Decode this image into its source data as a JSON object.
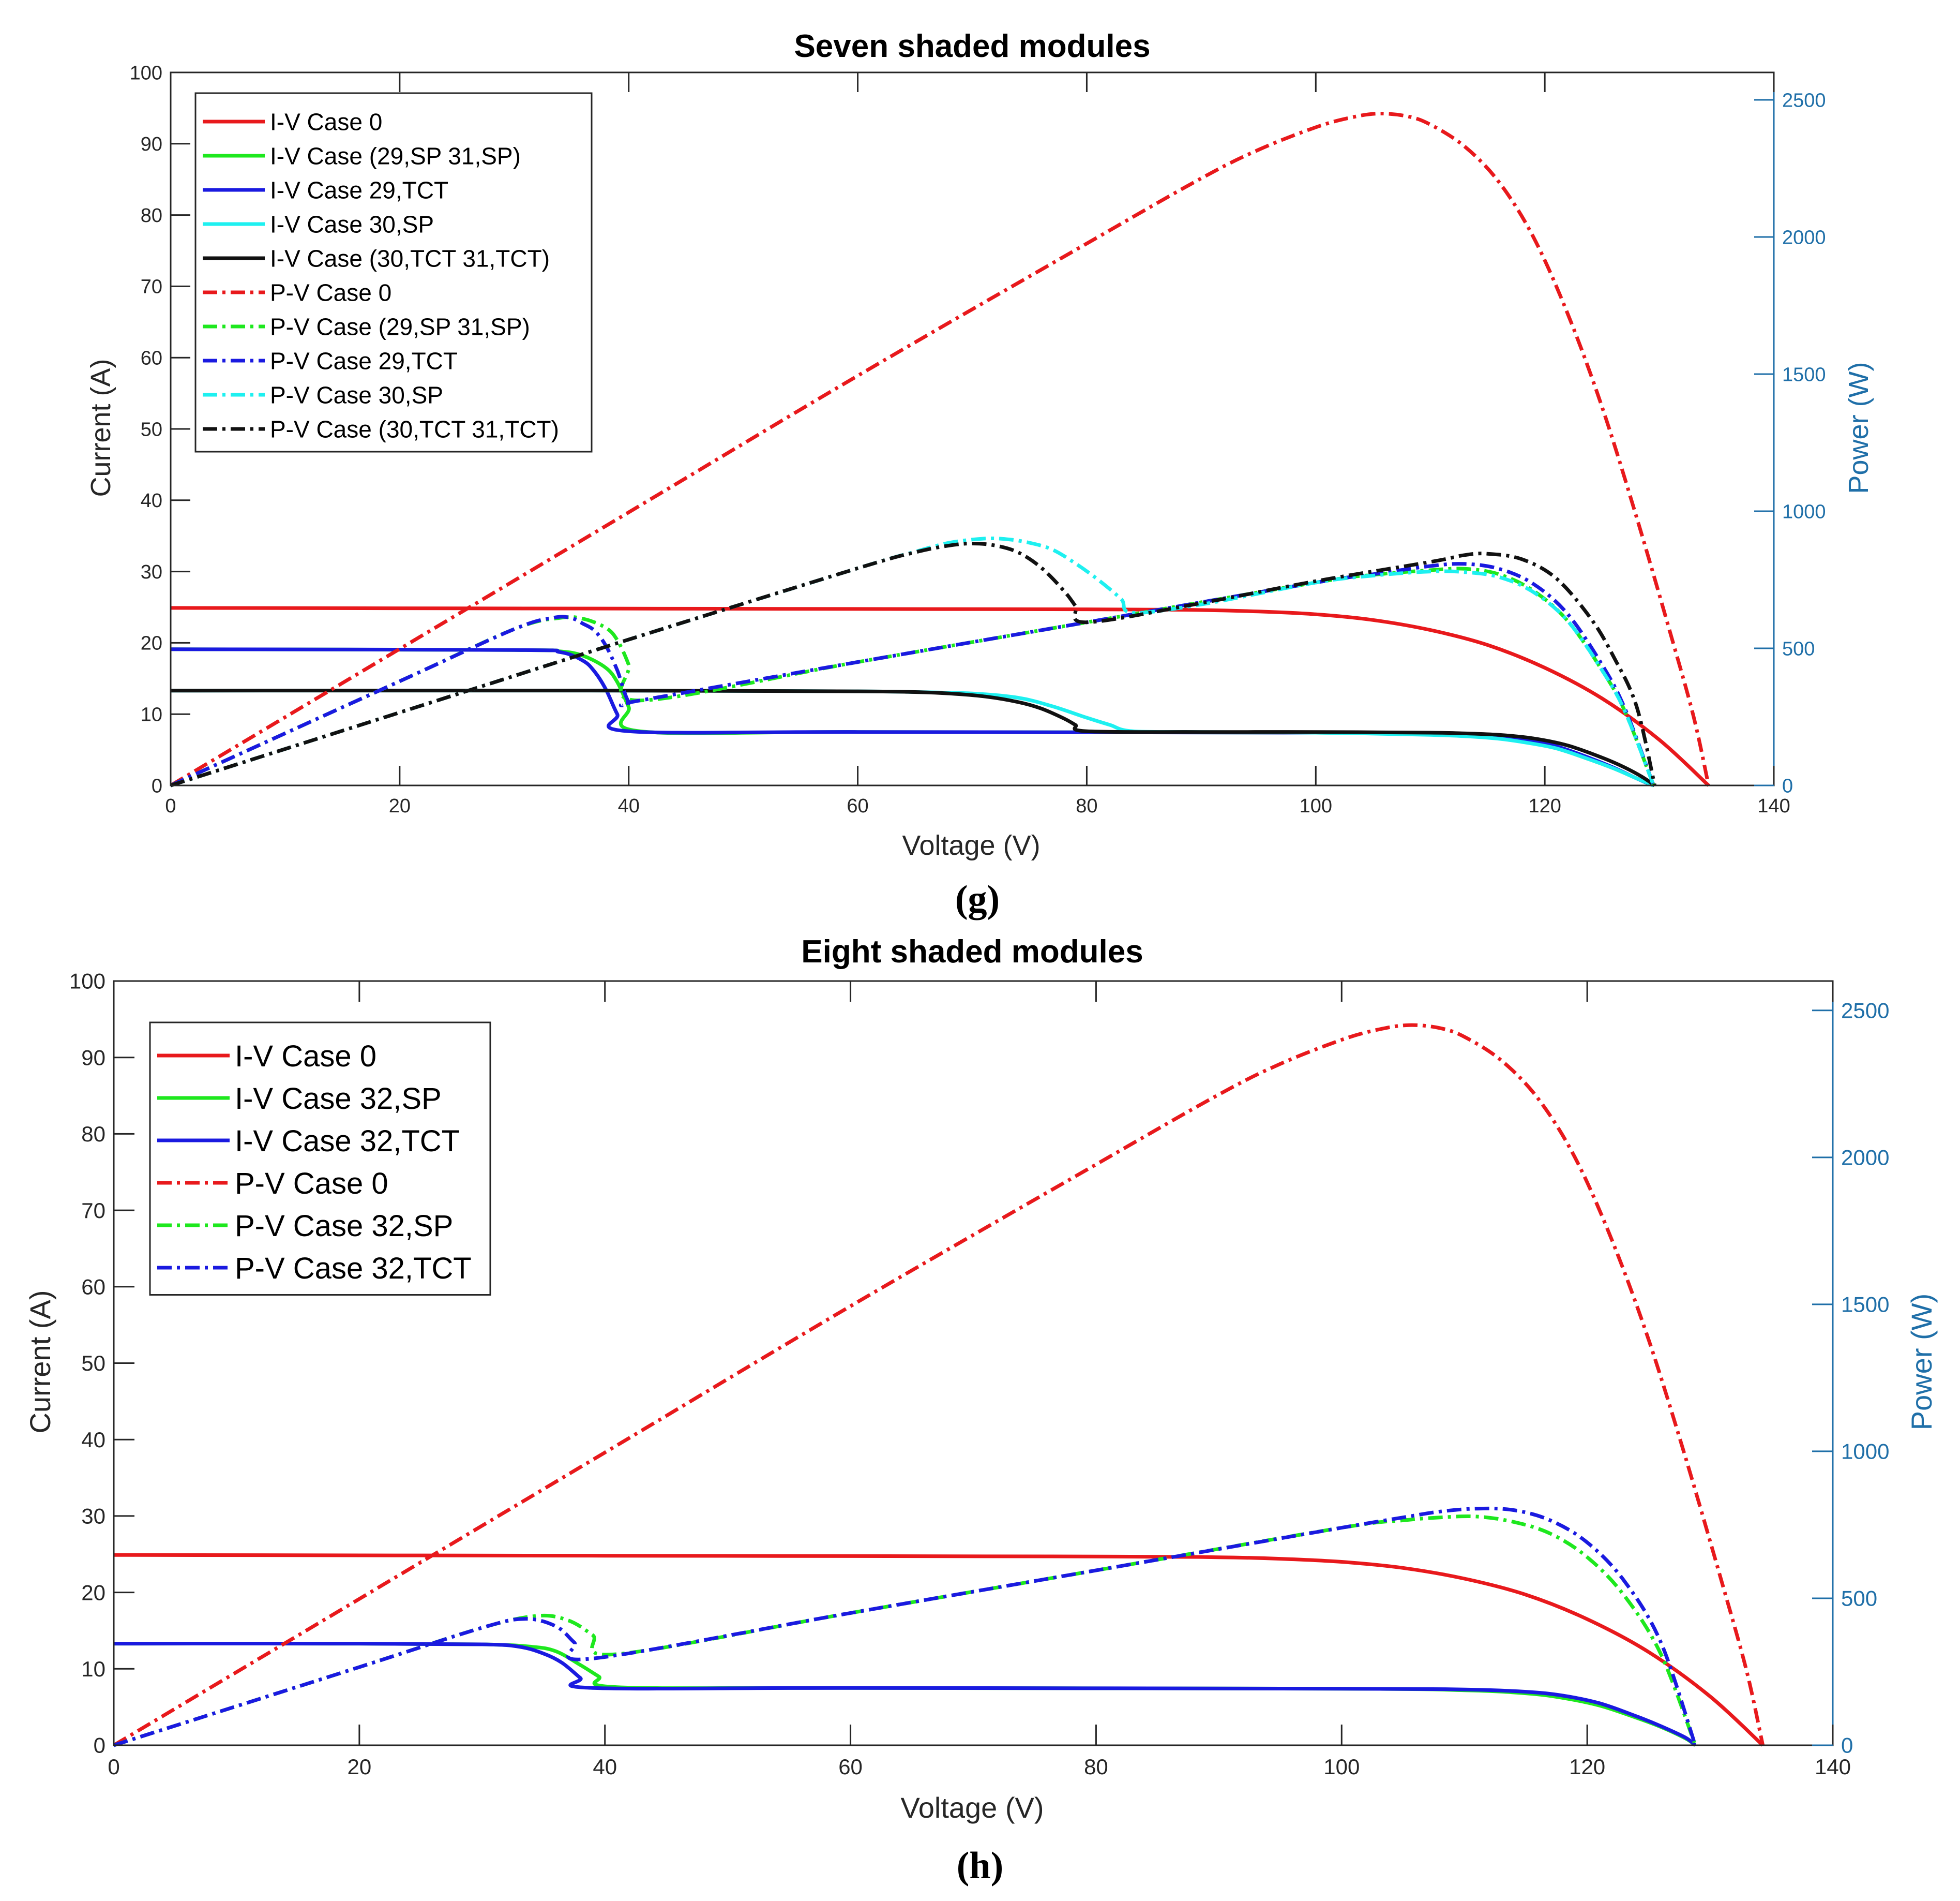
{
  "colors": {
    "red": "#e8191c",
    "green": "#1ee81e",
    "blue": "#1a1ae0",
    "cyan": "#1ef0f0",
    "black": "#111111",
    "right_axis": "#1f6fa8"
  },
  "chart_data": [
    {
      "type": "line",
      "panel_label": "(g)",
      "title": "Seven shaded modules",
      "xlabel": "Voltage (V)",
      "ylabel_left": "Current (A)",
      "ylabel_right": "Power (W)",
      "xlim": [
        0,
        140
      ],
      "ylim_left": [
        0,
        100
      ],
      "ylim_right": [
        0,
        2600
      ],
      "xticks": [
        0,
        20,
        40,
        60,
        80,
        100,
        120,
        140
      ],
      "yticks_left": [
        0,
        10,
        20,
        30,
        40,
        50,
        60,
        70,
        80,
        90,
        100
      ],
      "yticks_right": [
        0,
        500,
        1000,
        1500,
        2000,
        2500
      ],
      "legend_position": "top-left",
      "series": [
        {
          "name": "I-V Case 0",
          "axis": "left",
          "color": "red",
          "dash": false,
          "x": [
            0,
            40,
            80,
            90,
            95,
            100,
            105,
            110,
            115,
            120,
            125,
            130,
            134.3
          ],
          "y": [
            24.9,
            24.8,
            24.7,
            24.6,
            24.4,
            24.0,
            23.2,
            21.8,
            19.7,
            16.5,
            12.2,
            6.4,
            0
          ]
        },
        {
          "name": "I-V Case (29,SP 31,SP)",
          "axis": "left",
          "color": "green",
          "dash": false,
          "x": [
            0,
            30,
            34,
            36,
            38,
            39,
            40,
            41,
            60,
            100,
            110,
            115,
            118,
            121,
            124,
            126,
            128,
            129,
            129.5
          ],
          "y": [
            19.1,
            19.0,
            18.8,
            18.2,
            16.5,
            14.5,
            11.0,
            7.6,
            7.5,
            7.4,
            7.2,
            6.8,
            6.2,
            5.2,
            3.6,
            2.4,
            1.0,
            0.3,
            0
          ]
        },
        {
          "name": "I-V Case 29,TCT",
          "axis": "left",
          "color": "blue",
          "dash": false,
          "x": [
            0,
            30,
            34,
            36,
            37,
            38,
            39,
            40,
            60,
            100,
            110,
            115,
            118,
            121,
            124,
            126,
            128,
            129,
            129.5
          ],
          "y": [
            19.1,
            19.0,
            18.7,
            17.5,
            16.0,
            13.5,
            10.0,
            7.6,
            7.5,
            7.4,
            7.3,
            7.0,
            6.5,
            5.5,
            3.8,
            2.5,
            1.0,
            0.3,
            0
          ]
        },
        {
          "name": "I-V Case 30,SP",
          "axis": "left",
          "color": "cyan",
          "dash": false,
          "x": [
            0,
            40,
            60,
            65,
            70,
            74,
            77,
            80,
            82,
            84,
            90,
            100,
            110,
            115,
            118,
            121,
            124,
            126,
            128,
            129.5
          ],
          "y": [
            13.3,
            13.3,
            13.2,
            13.1,
            12.9,
            12.3,
            11.1,
            9.5,
            8.5,
            7.6,
            7.5,
            7.4,
            7.1,
            6.7,
            6.1,
            5.2,
            3.6,
            2.4,
            1.0,
            0
          ]
        },
        {
          "name": "I-V Case (30,TCT 31,TCT)",
          "axis": "left",
          "color": "black",
          "dash": false,
          "x": [
            0,
            40,
            60,
            65,
            68,
            71,
            74,
            76,
            78,
            79,
            80,
            90,
            100,
            110,
            113,
            116,
            119,
            122,
            125,
            127,
            128.5,
            129.6
          ],
          "y": [
            13.3,
            13.3,
            13.2,
            13.1,
            12.9,
            12.5,
            11.7,
            10.8,
            9.4,
            8.5,
            7.6,
            7.5,
            7.5,
            7.4,
            7.3,
            7.1,
            6.6,
            5.6,
            3.9,
            2.5,
            1.2,
            0
          ]
        },
        {
          "name": "P-V Case 0",
          "axis": "right",
          "color": "red",
          "dash": true,
          "x": [
            0,
            20,
            40,
            60,
            80,
            90,
            95,
            100,
            103,
            105.5,
            108,
            110,
            113,
            116,
            119,
            122,
            125,
            128,
            131,
            133,
            134.3
          ],
          "y": [
            0,
            498,
            996,
            1494,
            1976,
            2214,
            2318,
            2400,
            2435,
            2450,
            2440,
            2410,
            2330,
            2200,
            2000,
            1720,
            1380,
            980,
            550,
            250,
            0
          ]
        },
        {
          "name": "P-V Case (29,SP 31,SP)",
          "axis": "right",
          "color": "green",
          "dash": true,
          "x": [
            0,
            20,
            30,
            34,
            36,
            38,
            39,
            40,
            41,
            60,
            80,
            100,
            105,
            110,
            113,
            116,
            119,
            122,
            125,
            127,
            129.5
          ],
          "y": [
            0,
            380,
            570,
            611,
            608,
            575,
            530,
            440,
            310,
            450,
            595,
            740,
            768,
            785,
            790,
            770,
            710,
            600,
            420,
            270,
            0
          ]
        },
        {
          "name": "P-V Case 29,TCT",
          "axis": "right",
          "color": "blue",
          "dash": true,
          "x": [
            0,
            20,
            30,
            33.5,
            35,
            36,
            37,
            38,
            39,
            40,
            41,
            60,
            80,
            100,
            105,
            110,
            113,
            116,
            119,
            122,
            125,
            127,
            129.5
          ],
          "y": [
            0,
            380,
            570,
            612,
            610,
            590,
            565,
            510,
            420,
            305,
            310,
            450,
            595,
            740,
            770,
            800,
            808,
            790,
            735,
            625,
            440,
            280,
            0
          ]
        },
        {
          "name": "P-V Case 30,SP",
          "axis": "right",
          "color": "cyan",
          "dash": true,
          "x": [
            0,
            20,
            40,
            60,
            65,
            68,
            71,
            73,
            75,
            77,
            79,
            81,
            83,
            84,
            90,
            100,
            105,
            110,
            113,
            116,
            119,
            122,
            125,
            127,
            129.5
          ],
          "y": [
            0,
            266,
            532,
            792,
            852,
            885,
            900,
            898,
            885,
            860,
            810,
            750,
            680,
            630,
            660,
            740,
            765,
            780,
            778,
            760,
            705,
            600,
            420,
            270,
            0
          ]
        },
        {
          "name": "P-V Case (30,TCT 31,TCT)",
          "axis": "right",
          "color": "black",
          "dash": true,
          "x": [
            0,
            20,
            40,
            60,
            65,
            68,
            70,
            72,
            74,
            76,
            78,
            79,
            80,
            90,
            100,
            110,
            113,
            115,
            118,
            121,
            124,
            126,
            128,
            129.6
          ],
          "y": [
            0,
            266,
            532,
            792,
            850,
            875,
            882,
            875,
            850,
            795,
            710,
            655,
            595,
            665,
            745,
            815,
            840,
            845,
            825,
            755,
            610,
            470,
            290,
            0
          ]
        }
      ]
    },
    {
      "type": "line",
      "panel_label": "(h)",
      "title": "Eight shaded modules",
      "xlabel": "Voltage (V)",
      "ylabel_left": "Current (A)",
      "ylabel_right": "Power (W)",
      "xlim": [
        0,
        140
      ],
      "ylim_left": [
        0,
        100
      ],
      "ylim_right": [
        0,
        2600
      ],
      "xticks": [
        0,
        20,
        40,
        60,
        80,
        100,
        120,
        140
      ],
      "yticks_left": [
        0,
        10,
        20,
        30,
        40,
        50,
        60,
        70,
        80,
        90,
        100
      ],
      "yticks_right": [
        0,
        500,
        1000,
        1500,
        2000,
        2500
      ],
      "legend_position": "top-left",
      "series": [
        {
          "name": "I-V Case 0",
          "axis": "left",
          "color": "red",
          "dash": false,
          "x": [
            0,
            40,
            80,
            90,
            95,
            100,
            105,
            110,
            115,
            120,
            125,
            130,
            134.3
          ],
          "y": [
            24.9,
            24.8,
            24.7,
            24.6,
            24.4,
            24.0,
            23.2,
            21.8,
            19.7,
            16.5,
            12.2,
            6.4,
            0
          ]
        },
        {
          "name": "I-V Case 32,SP",
          "axis": "left",
          "color": "green",
          "dash": false,
          "x": [
            0,
            20,
            30,
            34,
            36,
            38,
            39.5,
            41,
            60,
            100,
            110,
            115,
            118,
            121,
            124,
            126,
            128,
            128.8
          ],
          "y": [
            13.3,
            13.3,
            13.2,
            12.9,
            12.3,
            10.5,
            9.0,
            7.6,
            7.5,
            7.4,
            7.2,
            6.8,
            6.2,
            5.2,
            3.6,
            2.4,
            0.9,
            0
          ]
        },
        {
          "name": "I-V Case 32,TCT",
          "axis": "left",
          "color": "blue",
          "dash": false,
          "x": [
            0,
            20,
            30,
            33,
            35,
            36.5,
            38,
            39,
            60,
            100,
            110,
            115,
            118,
            121,
            124,
            126,
            128,
            128.8
          ],
          "y": [
            13.3,
            13.3,
            13.2,
            12.9,
            12.0,
            10.8,
            8.8,
            7.5,
            7.5,
            7.4,
            7.3,
            7.0,
            6.5,
            5.5,
            3.8,
            2.5,
            1.0,
            0
          ]
        },
        {
          "name": "P-V Case 0",
          "axis": "right",
          "color": "red",
          "dash": true,
          "x": [
            0,
            20,
            40,
            60,
            80,
            90,
            95,
            100,
            103,
            105.5,
            108,
            110,
            113,
            116,
            119,
            122,
            125,
            128,
            131,
            133,
            134.3
          ],
          "y": [
            0,
            498,
            996,
            1494,
            1976,
            2214,
            2318,
            2400,
            2435,
            2450,
            2440,
            2410,
            2330,
            2200,
            2000,
            1720,
            1380,
            980,
            550,
            250,
            0
          ]
        },
        {
          "name": "P-V Case 32,SP",
          "axis": "right",
          "color": "green",
          "dash": true,
          "x": [
            0,
            20,
            30,
            34.5,
            37,
            39,
            41,
            60,
            80,
            100,
            105,
            108,
            111,
            114,
            117,
            120,
            123,
            126,
            128.8
          ],
          "y": [
            0,
            266,
            400,
            440,
            425,
            375,
            310,
            450,
            595,
            740,
            765,
            775,
            778,
            760,
            720,
            640,
            510,
            310,
            0
          ]
        },
        {
          "name": "P-V Case 32,TCT",
          "axis": "right",
          "color": "blue",
          "dash": true,
          "x": [
            0,
            20,
            30,
            33.5,
            36,
            37.5,
            39,
            60,
            80,
            100,
            105,
            108,
            111,
            114,
            117,
            120,
            123,
            126,
            128.8
          ],
          "y": [
            0,
            266,
            400,
            430,
            405,
            350,
            295,
            450,
            595,
            740,
            775,
            795,
            805,
            800,
            765,
            690,
            560,
            350,
            0
          ]
        }
      ]
    }
  ]
}
